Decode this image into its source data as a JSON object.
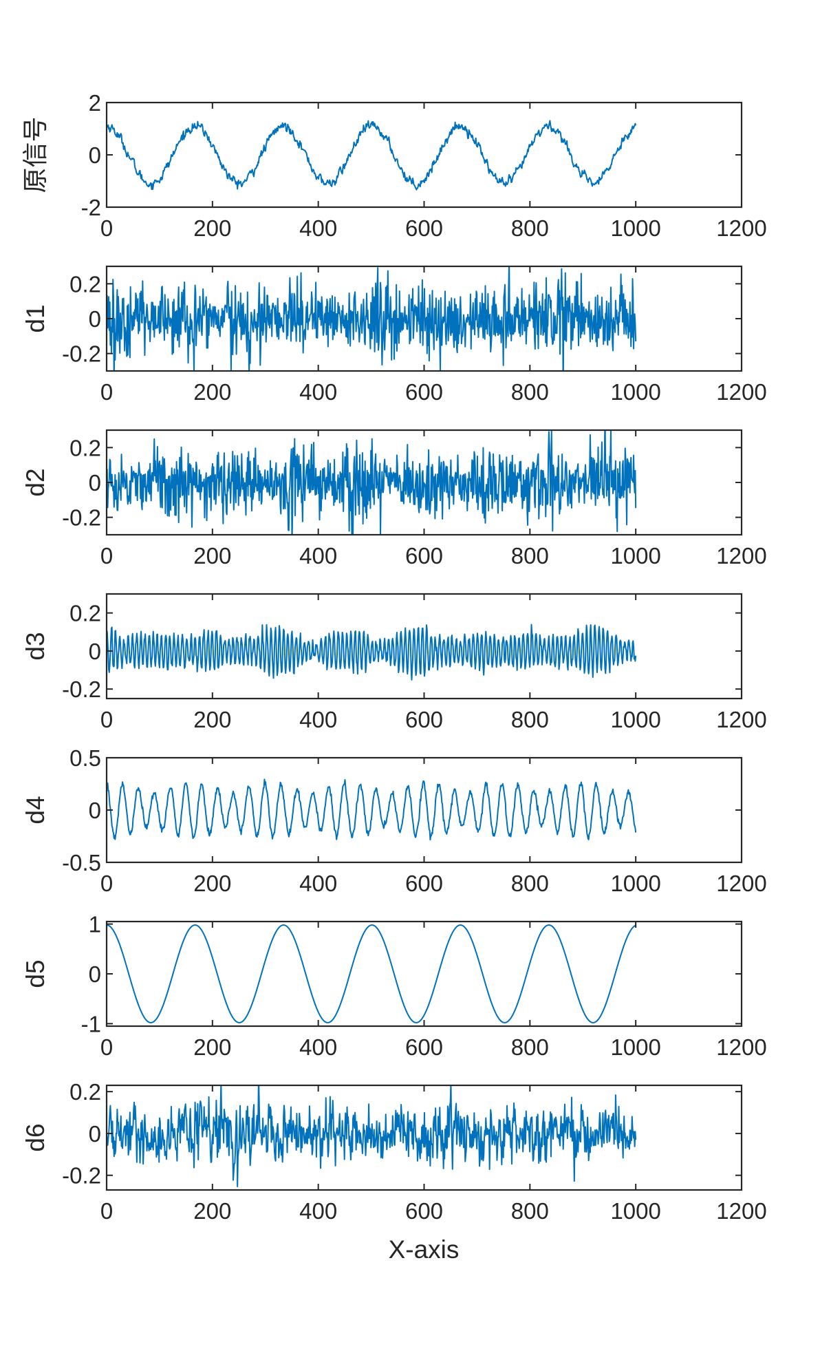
{
  "figure": {
    "xlabel": "X-axis",
    "line_color": "#0072BD",
    "axis_color": "#262626"
  },
  "chart_data": [
    {
      "type": "line",
      "ylabel": "原信号",
      "xlim": [
        0,
        1200
      ],
      "ylim": [
        -2,
        2
      ],
      "xticks": [
        0,
        200,
        400,
        600,
        800,
        1000,
        1200
      ],
      "yticks": [
        -2,
        0,
        2
      ],
      "signal": {
        "kind": "sine",
        "amp": 1.1,
        "period": 167,
        "phase_deg": 90,
        "noise": 0.25,
        "n": 1000
      },
      "series": [
        {
          "x_range": [
            0,
            1000
          ]
        }
      ]
    },
    {
      "type": "line",
      "ylabel": "d1",
      "xlim": [
        0,
        1200
      ],
      "ylim": [
        -0.3,
        0.3
      ],
      "xticks": [
        0,
        200,
        400,
        600,
        800,
        1000,
        1200
      ],
      "yticks": [
        -0.2,
        0,
        0.2
      ],
      "signal": {
        "kind": "noise",
        "amp": 0.12,
        "n": 1000,
        "burst": true
      },
      "series": [
        {
          "x_range": [
            0,
            1000
          ]
        }
      ]
    },
    {
      "type": "line",
      "ylabel": "d2",
      "xlim": [
        0,
        1200
      ],
      "ylim": [
        -0.3,
        0.3
      ],
      "xticks": [
        0,
        200,
        400,
        600,
        800,
        1000,
        1200
      ],
      "yticks": [
        -0.2,
        0,
        0.2
      ],
      "signal": {
        "kind": "noise",
        "amp": 0.11,
        "n": 1000,
        "burst": true
      },
      "series": [
        {
          "x_range": [
            0,
            1000
          ]
        }
      ]
    },
    {
      "type": "line",
      "ylabel": "d3",
      "xlim": [
        0,
        1200
      ],
      "ylim": [
        -0.25,
        0.3
      ],
      "xticks": [
        0,
        200,
        400,
        600,
        800,
        1000,
        1200
      ],
      "yticks": [
        -0.2,
        0,
        0.2
      ],
      "signal": {
        "kind": "osc",
        "amp": 0.12,
        "period": 8,
        "n": 1000,
        "burst": true
      },
      "series": [
        {
          "x_range": [
            0,
            1000
          ]
        }
      ]
    },
    {
      "type": "line",
      "ylabel": "d4",
      "xlim": [
        0,
        1200
      ],
      "ylim": [
        -0.5,
        0.5
      ],
      "xticks": [
        0,
        200,
        400,
        600,
        800,
        1000,
        1200
      ],
      "yticks": [
        -0.5,
        0,
        0.5
      ],
      "signal": {
        "kind": "osc",
        "amp": 0.26,
        "period": 30,
        "n": 1000,
        "burst": false
      },
      "series": [
        {
          "x_range": [
            0,
            1000
          ]
        }
      ]
    },
    {
      "type": "line",
      "ylabel": "d5",
      "xlim": [
        0,
        1200
      ],
      "ylim": [
        -1.05,
        1.05
      ],
      "xticks": [
        0,
        200,
        400,
        600,
        800,
        1000,
        1200
      ],
      "yticks": [
        -1,
        0,
        1
      ],
      "signal": {
        "kind": "sine",
        "amp": 0.98,
        "period": 167,
        "phase_deg": 90,
        "noise": 0.0,
        "n": 1000
      },
      "series": [
        {
          "x_range": [
            0,
            1000
          ]
        }
      ]
    },
    {
      "type": "line",
      "ylabel": "d6",
      "xlim": [
        0,
        1200
      ],
      "ylim": [
        -0.27,
        0.23
      ],
      "xticks": [
        0,
        200,
        400,
        600,
        800,
        1000,
        1200
      ],
      "yticks": [
        -0.2,
        0,
        0.2
      ],
      "signal": {
        "kind": "noise",
        "amp": 0.07,
        "n": 1000,
        "burst": false,
        "smooth": true
      },
      "series": [
        {
          "x_range": [
            0,
            1000
          ]
        }
      ]
    }
  ]
}
